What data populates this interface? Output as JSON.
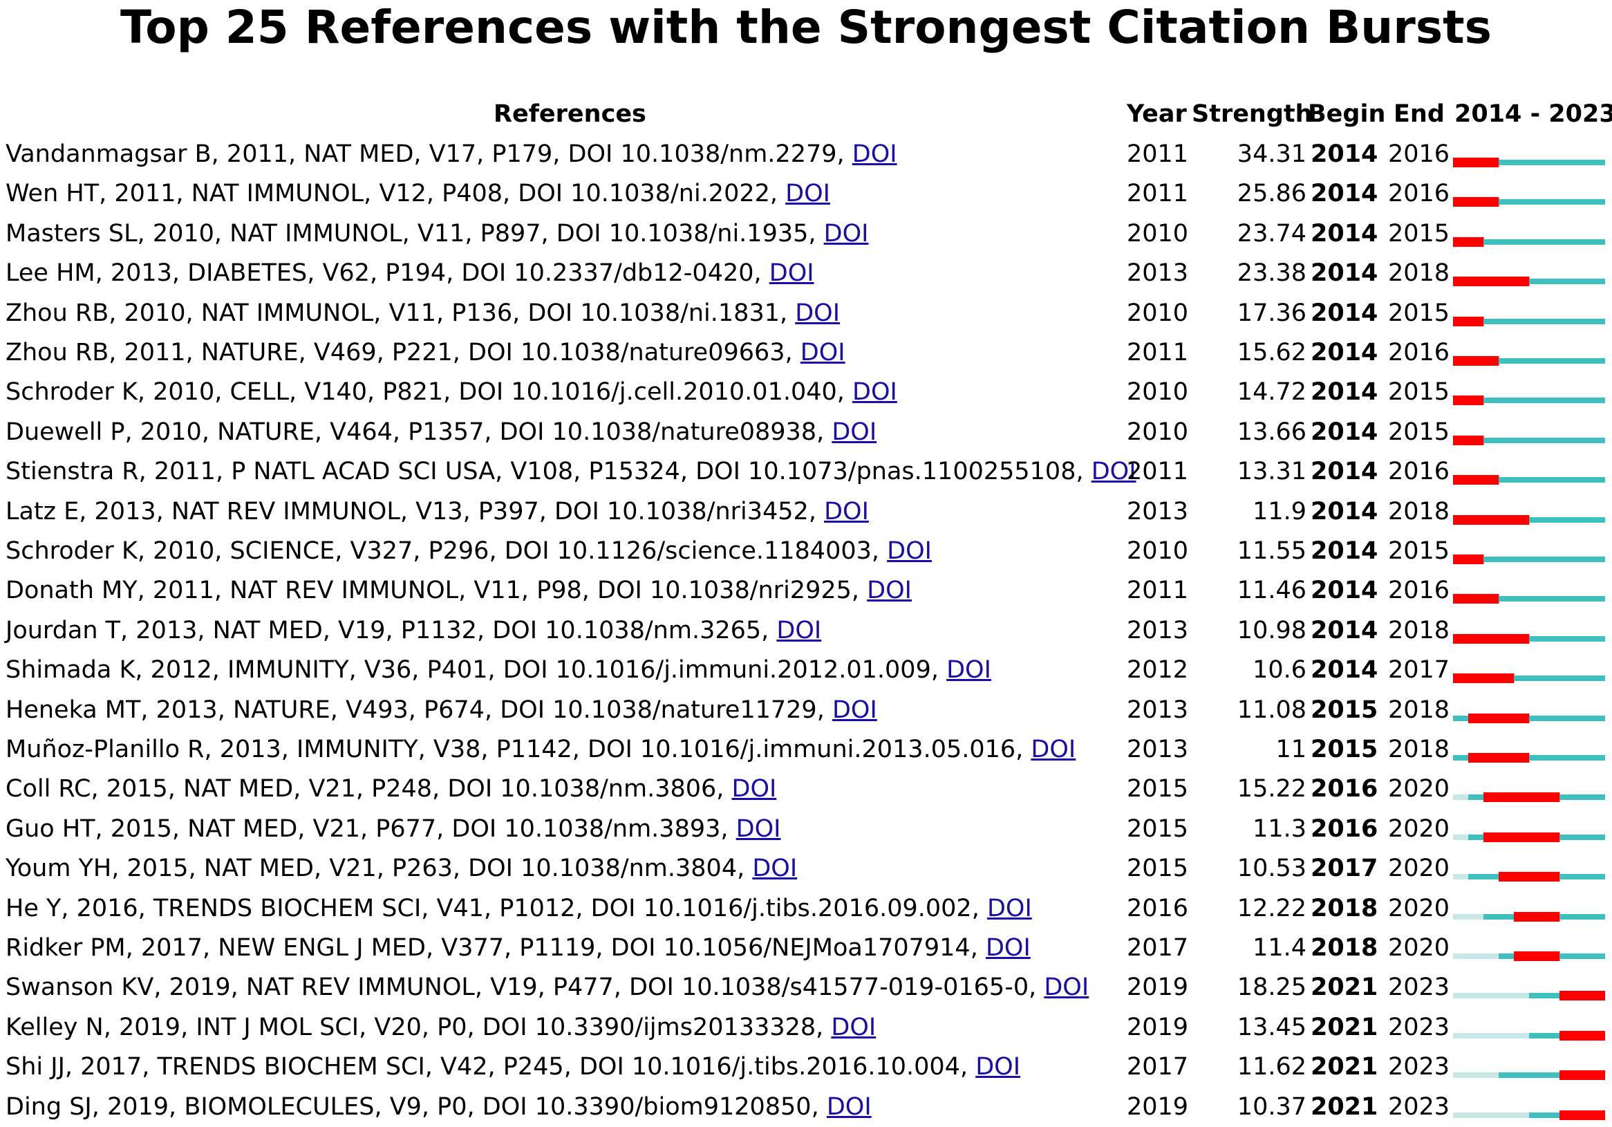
{
  "chart_data": {
    "type": "table",
    "title": "Top 25 References with the Strongest Citation Bursts",
    "headers": {
      "references": "References",
      "year": "Year",
      "strength": "Strength",
      "begin": "Begin",
      "end": "End",
      "range": "2014 - 2023"
    },
    "range_start": 2014,
    "range_end": 2023,
    "link_label": "DOI",
    "colors": {
      "burst": "#ff0000",
      "active": "#40bfbf",
      "inactive": "#c8e8e8"
    },
    "rows": [
      {
        "ref": "Vandanmagsar B, 2011, NAT MED, V17, P179, DOI 10.1038/nm.2279,",
        "year": "2011",
        "strength": "34.31",
        "begin": "2014",
        "end": "2016"
      },
      {
        "ref": "Wen HT, 2011, NAT IMMUNOL, V12, P408, DOI 10.1038/ni.2022,",
        "year": "2011",
        "strength": "25.86",
        "begin": "2014",
        "end": "2016"
      },
      {
        "ref": "Masters SL, 2010, NAT IMMUNOL, V11, P897, DOI 10.1038/ni.1935,",
        "year": "2010",
        "strength": "23.74",
        "begin": "2014",
        "end": "2015"
      },
      {
        "ref": "Lee HM, 2013, DIABETES, V62, P194, DOI 10.2337/db12-0420,",
        "year": "2013",
        "strength": "23.38",
        "begin": "2014",
        "end": "2018"
      },
      {
        "ref": "Zhou RB, 2010, NAT IMMUNOL, V11, P136, DOI 10.1038/ni.1831,",
        "year": "2010",
        "strength": "17.36",
        "begin": "2014",
        "end": "2015"
      },
      {
        "ref": "Zhou RB, 2011, NATURE, V469, P221, DOI 10.1038/nature09663,",
        "year": "2011",
        "strength": "15.62",
        "begin": "2014",
        "end": "2016"
      },
      {
        "ref": "Schroder K, 2010, CELL, V140, P821, DOI 10.1016/j.cell.2010.01.040,",
        "year": "2010",
        "strength": "14.72",
        "begin": "2014",
        "end": "2015"
      },
      {
        "ref": "Duewell P, 2010, NATURE, V464, P1357, DOI 10.1038/nature08938,",
        "year": "2010",
        "strength": "13.66",
        "begin": "2014",
        "end": "2015"
      },
      {
        "ref": "Stienstra R, 2011, P NATL ACAD SCI USA, V108, P15324, DOI 10.1073/pnas.1100255108,",
        "year": "2011",
        "strength": "13.31",
        "begin": "2014",
        "end": "2016"
      },
      {
        "ref": "Latz E, 2013, NAT REV IMMUNOL, V13, P397, DOI 10.1038/nri3452,",
        "year": "2013",
        "strength": "11.9",
        "begin": "2014",
        "end": "2018"
      },
      {
        "ref": "Schroder K, 2010, SCIENCE, V327, P296, DOI 10.1126/science.1184003,",
        "year": "2010",
        "strength": "11.55",
        "begin": "2014",
        "end": "2015"
      },
      {
        "ref": "Donath MY, 2011, NAT REV IMMUNOL, V11, P98, DOI 10.1038/nri2925,",
        "year": "2011",
        "strength": "11.46",
        "begin": "2014",
        "end": "2016"
      },
      {
        "ref": "Jourdan T, 2013, NAT MED, V19, P1132, DOI 10.1038/nm.3265,",
        "year": "2013",
        "strength": "10.98",
        "begin": "2014",
        "end": "2018"
      },
      {
        "ref": "Shimada K, 2012, IMMUNITY, V36, P401, DOI 10.1016/j.immuni.2012.01.009,",
        "year": "2012",
        "strength": "10.6",
        "begin": "2014",
        "end": "2017"
      },
      {
        "ref": "Heneka MT, 2013, NATURE, V493, P674, DOI 10.1038/nature11729,",
        "year": "2013",
        "strength": "11.08",
        "begin": "2015",
        "end": "2018"
      },
      {
        "ref": "Muñoz-Planillo R, 2013, IMMUNITY, V38, P1142, DOI 10.1016/j.immuni.2013.05.016,",
        "year": "2013",
        "strength": "11",
        "begin": "2015",
        "end": "2018"
      },
      {
        "ref": "Coll RC, 2015, NAT MED, V21, P248, DOI 10.1038/nm.3806,",
        "year": "2015",
        "strength": "15.22",
        "begin": "2016",
        "end": "2020"
      },
      {
        "ref": "Guo HT, 2015, NAT MED, V21, P677, DOI 10.1038/nm.3893,",
        "year": "2015",
        "strength": "11.3",
        "begin": "2016",
        "end": "2020"
      },
      {
        "ref": "Youm YH, 2015, NAT MED, V21, P263, DOI 10.1038/nm.3804,",
        "year": "2015",
        "strength": "10.53",
        "begin": "2017",
        "end": "2020"
      },
      {
        "ref": "He Y, 2016, TRENDS BIOCHEM SCI, V41, P1012, DOI 10.1016/j.tibs.2016.09.002,",
        "year": "2016",
        "strength": "12.22",
        "begin": "2018",
        "end": "2020"
      },
      {
        "ref": "Ridker PM, 2017, NEW ENGL J MED, V377, P1119, DOI 10.1056/NEJMoa1707914,",
        "year": "2017",
        "strength": "11.4",
        "begin": "2018",
        "end": "2020"
      },
      {
        "ref": "Swanson KV, 2019, NAT REV IMMUNOL, V19, P477, DOI 10.1038/s41577-019-0165-0,",
        "year": "2019",
        "strength": "18.25",
        "begin": "2021",
        "end": "2023"
      },
      {
        "ref": "Kelley N, 2019, INT J MOL SCI, V20, P0, DOI 10.3390/ijms20133328,",
        "year": "2019",
        "strength": "13.45",
        "begin": "2021",
        "end": "2023"
      },
      {
        "ref": "Shi JJ, 2017, TRENDS BIOCHEM SCI, V42, P245, DOI 10.1016/j.tibs.2016.10.004,",
        "year": "2017",
        "strength": "11.62",
        "begin": "2021",
        "end": "2023"
      },
      {
        "ref": "Ding SJ, 2019, BIOMOLECULES, V9, P0, DOI 10.3390/biom9120850,",
        "year": "2019",
        "strength": "10.37",
        "begin": "2021",
        "end": "2023"
      }
    ]
  }
}
